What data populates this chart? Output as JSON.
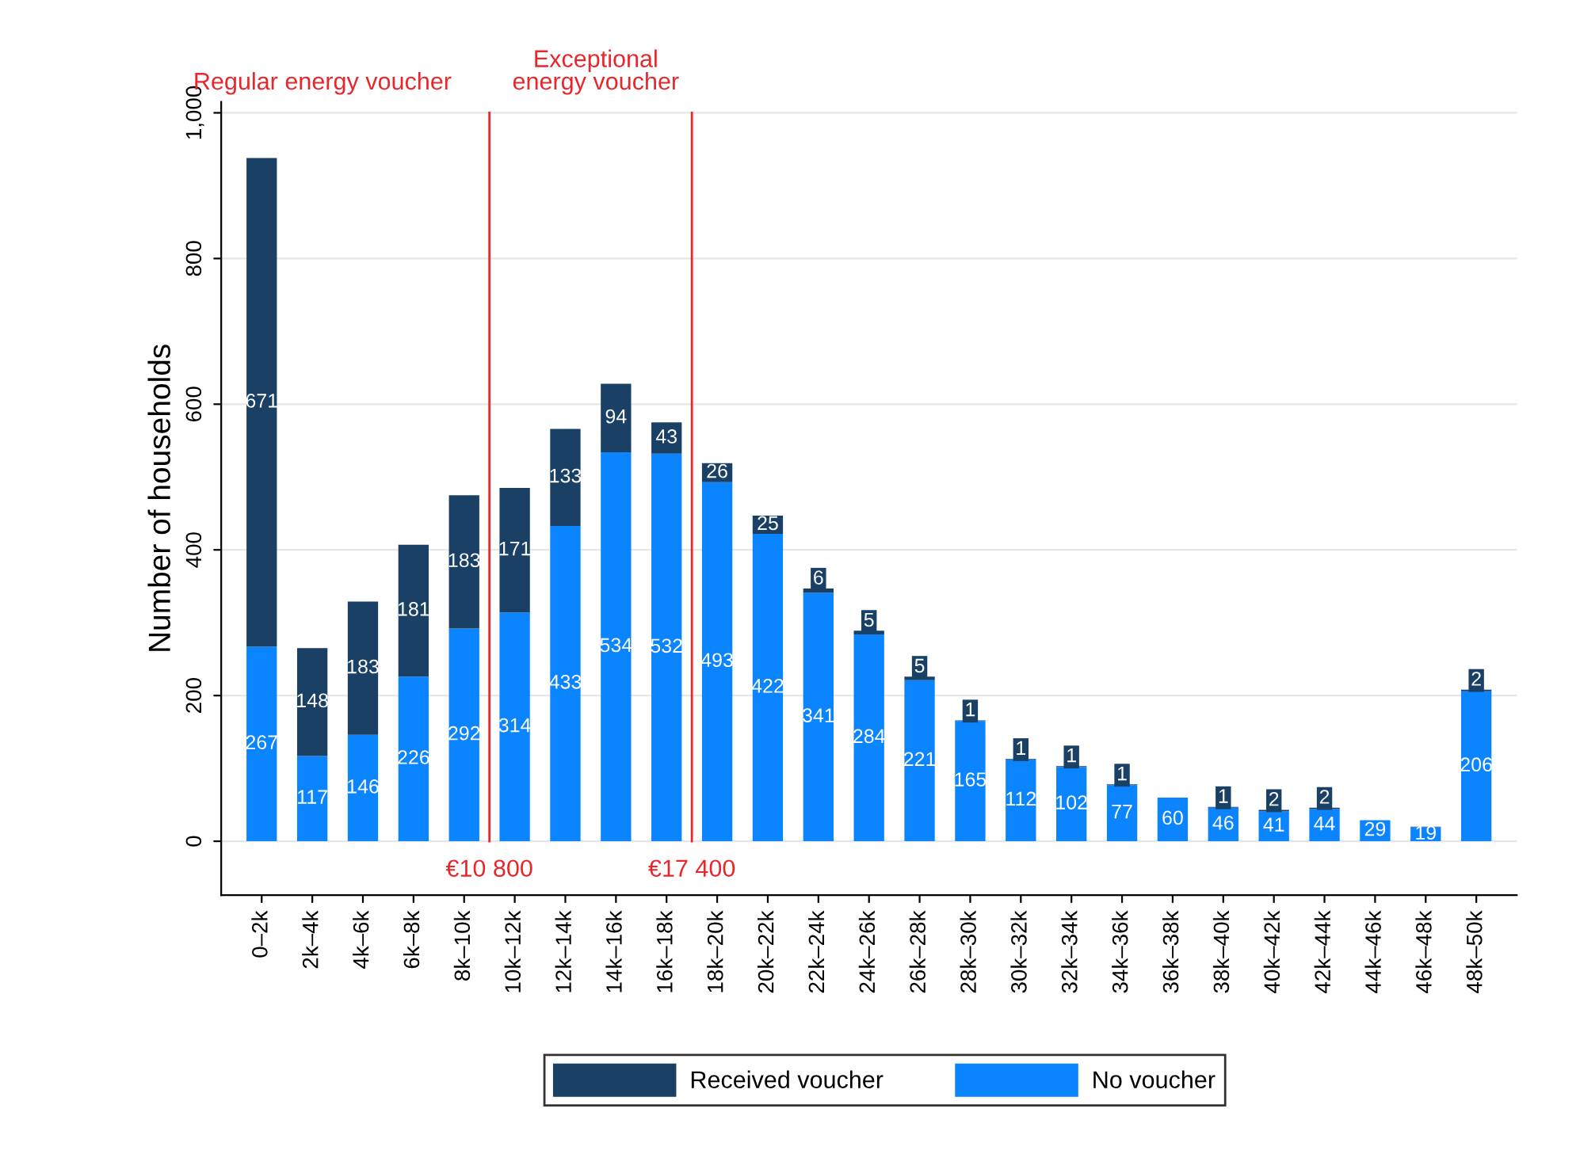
{
  "chart_data": {
    "type": "bar",
    "stacked": true,
    "ylabel": "Number of households",
    "categories": [
      "0–2k",
      "2k–4k",
      "4k–6k",
      "6k–8k",
      "8k–10k",
      "10k–12k",
      "12k–14k",
      "14k–16k",
      "16k–18k",
      "18k–20k",
      "20k–22k",
      "22k–24k",
      "24k–26k",
      "26k–28k",
      "28k–30k",
      "30k–32k",
      "32k–34k",
      "34k–36k",
      "36k–38k",
      "38k–40k",
      "40k–42k",
      "42k–44k",
      "44k–46k",
      "46k–48k",
      "48k–50k"
    ],
    "series": [
      {
        "name": "No voucher",
        "color": "#0a84ff",
        "values": [
          267,
          117,
          146,
          226,
          292,
          314,
          433,
          534,
          532,
          493,
          422,
          341,
          284,
          221,
          165,
          112,
          102,
          77,
          60,
          46,
          41,
          44,
          29,
          19,
          206
        ],
        "value_labels": [
          "267",
          "117",
          "146",
          "226",
          "292",
          "314",
          "433",
          "534",
          "532",
          "493",
          "422",
          "341",
          "284",
          "221",
          "165",
          "112",
          "102",
          "77",
          "60",
          "46",
          "41",
          "44",
          "29",
          "19",
          "206"
        ]
      },
      {
        "name": "Received voucher",
        "color": "#1a4066",
        "values": [
          671,
          148,
          183,
          181,
          183,
          171,
          133,
          94,
          43,
          26,
          25,
          6,
          5,
          5,
          1,
          1,
          1,
          1,
          0,
          1,
          2,
          2,
          0,
          1,
          2
        ],
        "value_labels": [
          "671",
          "148",
          "183",
          "181",
          "183",
          "171",
          "133",
          "94",
          "43",
          "26",
          "25",
          "6",
          "5",
          "5",
          "1",
          "1",
          "1",
          "1",
          null,
          "1",
          "2",
          "2",
          null,
          null,
          "2"
        ]
      }
    ],
    "ylim": [
      -74,
      1015
    ],
    "yticks": [
      0,
      200,
      400,
      600,
      800,
      {
        "value": 1000,
        "label": "1,000"
      }
    ],
    "grid": "y",
    "legend": "bottom",
    "annotations": [
      "Regular energy voucher",
      "Exceptional\nenergy voucher",
      "€10 800",
      "€17 400"
    ]
  }
}
